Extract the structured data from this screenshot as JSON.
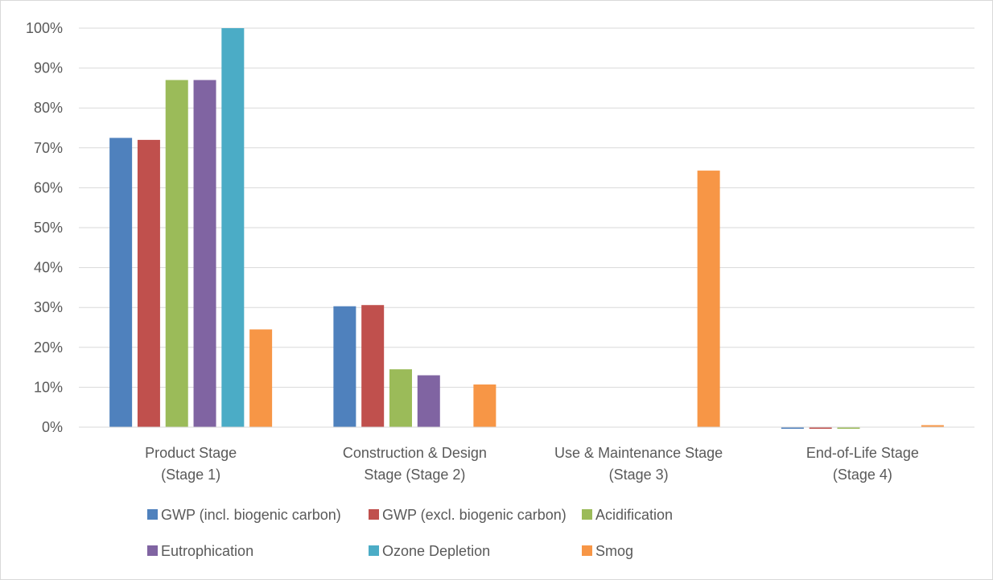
{
  "chart_data": {
    "type": "bar",
    "title": "",
    "xlabel": "",
    "ylabel": "",
    "ylim": [
      0,
      100
    ],
    "yticks": [
      "0%",
      "10%",
      "20%",
      "30%",
      "40%",
      "50%",
      "60%",
      "70%",
      "80%",
      "90%",
      "100%"
    ],
    "grid": true,
    "legend_position": "bottom",
    "categories": [
      [
        "Product Stage",
        "(Stage 1)"
      ],
      [
        "Construction & Design",
        "Stage (Stage 2)"
      ],
      [
        "Use & Maintenance Stage",
        "(Stage 3)"
      ],
      [
        "End-of-Life Stage",
        "(Stage 4)"
      ]
    ],
    "series": [
      {
        "name": "GWP (incl. biogenic carbon)",
        "color": "#4F81BD",
        "values": [
          72.5,
          30.3,
          0,
          -0.4
        ]
      },
      {
        "name": "GWP (excl. biogenic carbon)",
        "color": "#C0504D",
        "values": [
          72.0,
          30.6,
          0,
          -0.4
        ]
      },
      {
        "name": "Acidification",
        "color": "#9BBB59",
        "values": [
          87.0,
          14.5,
          0,
          -0.3
        ]
      },
      {
        "name": "Eutrophication",
        "color": "#8064A2",
        "values": [
          87.0,
          13.0,
          0,
          0
        ]
      },
      {
        "name": "Ozone Depletion",
        "color": "#4BACC6",
        "values": [
          100.0,
          0,
          0,
          0
        ]
      },
      {
        "name": "Smog",
        "color": "#F79646",
        "values": [
          24.5,
          10.7,
          64.3,
          0.5
        ]
      }
    ]
  }
}
